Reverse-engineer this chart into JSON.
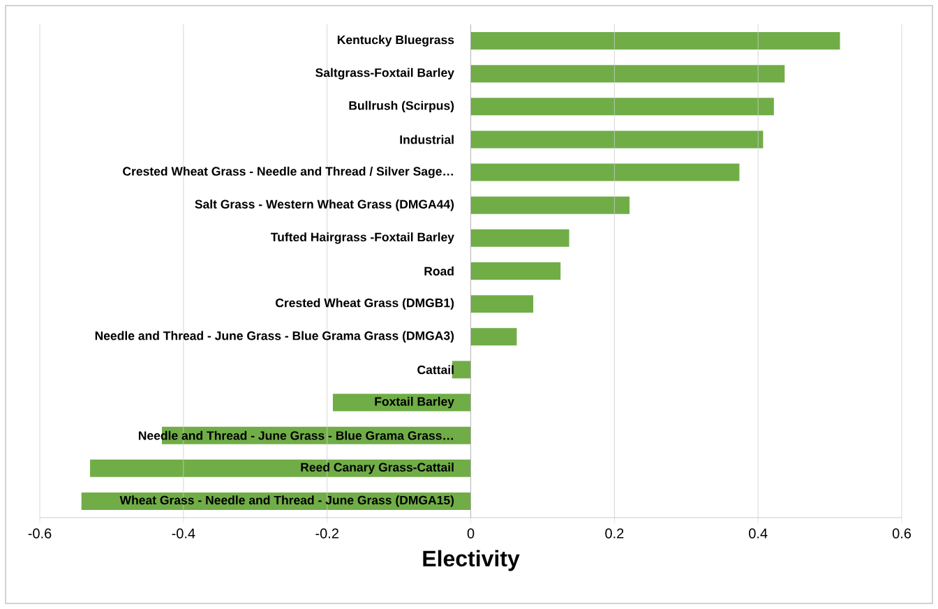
{
  "chart_data": {
    "type": "bar",
    "orientation": "horizontal",
    "xlabel": "Electivity",
    "categories": [
      "Kentucky Bluegrass",
      "Saltgrass-Foxtail Barley",
      "Bullrush (Scirpus)",
      "Industrial",
      "Crested Wheat Grass - Needle and Thread / Silver Sage…",
      "Salt Grass - Western Wheat Grass (DMGA44)",
      "Tufted Hairgrass -Foxtail Barley",
      "Road",
      "Crested Wheat Grass (DMGB1)",
      "Needle and Thread - June Grass - Blue Grama Grass (DMGA3)",
      "Cattail",
      "Foxtail Barley",
      "Needle and Thread - June Grass - Blue Grama Grass…",
      "Reed Canary Grass-Cattail",
      "Wheat Grass - Needle and Thread - June Grass (DMGA15)"
    ],
    "values": [
      0.514,
      0.437,
      0.422,
      0.407,
      0.374,
      0.221,
      0.137,
      0.125,
      0.087,
      0.064,
      -0.026,
      -0.192,
      -0.43,
      -0.53,
      -0.542
    ],
    "color": "#70ad47",
    "xlim": [
      -0.6,
      0.6
    ],
    "xticks": [
      -0.6,
      -0.4,
      -0.2,
      0,
      0.2,
      0.4,
      0.6
    ],
    "grid": "x"
  }
}
